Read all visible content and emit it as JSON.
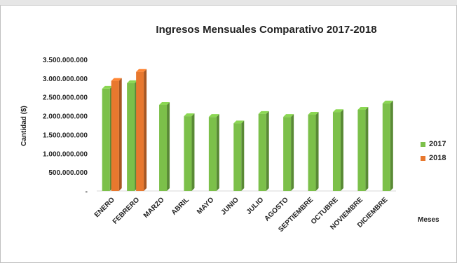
{
  "chart_data": {
    "type": "bar",
    "title": "Ingresos Mensuales Comparativo  2017-2018",
    "ylabel": "Cantidad  ($)",
    "xlabel": "Meses",
    "ylim": [
      0,
      3500000000
    ],
    "yticks": [
      0,
      500000000,
      1000000000,
      1500000000,
      2000000000,
      2500000000,
      3000000000,
      3500000000
    ],
    "ytick_labels": [
      "-",
      "500.000.000",
      "1.000.000.000",
      "1.500.000.000",
      "2.000.000.000",
      "2.500.000.000",
      "3.000.000.000",
      "3.500.000.000"
    ],
    "categories": [
      "ENERO",
      "FEBRERO",
      "MARZO",
      "ABRIL",
      "MAYO",
      "JUNIO",
      "JULIO",
      "AGOSTO",
      "SEPTIEMBRE",
      "OCTUBRE",
      "NOVIEMBRE",
      "DICIEMBRE"
    ],
    "series": [
      {
        "name": "2017",
        "color": "#7cc04a",
        "values": [
          2720000000,
          2870000000,
          2290000000,
          1990000000,
          1970000000,
          1800000000,
          2050000000,
          1970000000,
          2030000000,
          2100000000,
          2160000000,
          2330000000
        ]
      },
      {
        "name": "2018",
        "color": "#e8782e",
        "values": [
          2930000000,
          3170000000,
          null,
          null,
          null,
          null,
          null,
          null,
          null,
          null,
          null,
          null
        ]
      }
    ],
    "grid": false,
    "legend": "right"
  }
}
